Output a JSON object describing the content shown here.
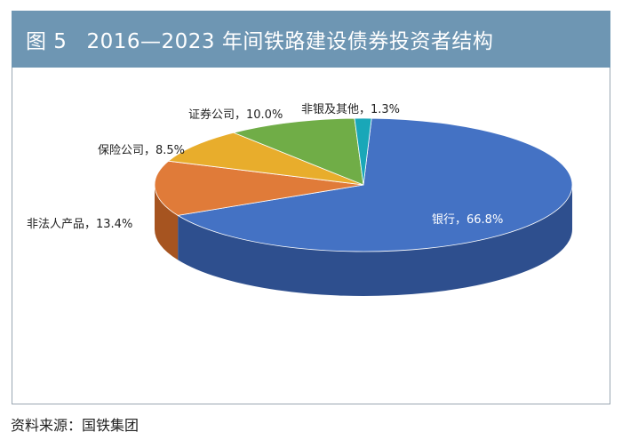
{
  "header": {
    "figure_no": "图 5",
    "title": "2016—2023 年间铁路建设债券投资者结构"
  },
  "chart_data": {
    "type": "pie",
    "title": "2016—2023 年间铁路建设债券投资者结构",
    "style": "3d-pie",
    "slices": [
      {
        "name": "银行",
        "value": 66.8,
        "label": "银行，66.8%",
        "color": "#4472c4",
        "side": "#2e4f8e"
      },
      {
        "name": "非法人产品",
        "value": 13.4,
        "label": "非法人产品，13.4%",
        "color": "#e07b39",
        "side": "#a65420"
      },
      {
        "name": "保险公司",
        "value": 8.5,
        "label": "保险公司，8.5%",
        "color": "#e8ad2c",
        "side": "#ad7e14"
      },
      {
        "name": "证券公司",
        "value": 10.0,
        "label": "证券公司，10.0%",
        "color": "#70ad47",
        "side": "#4e8030"
      },
      {
        "name": "非银及其他",
        "value": 1.3,
        "label": "非银及其他，1.3%",
        "color": "#19a7b8",
        "side": "#0f7480"
      }
    ]
  },
  "footer": {
    "source": "资料来源：国铁集团"
  }
}
